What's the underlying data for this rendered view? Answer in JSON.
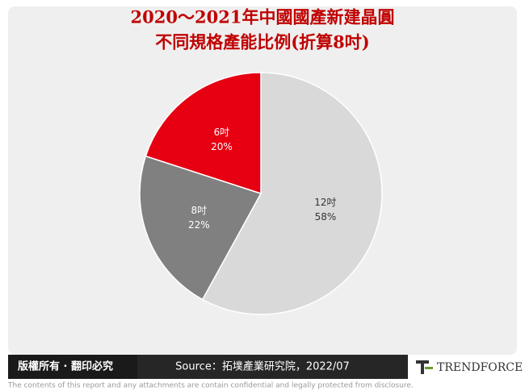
{
  "chart_data": {
    "type": "pie",
    "title": [
      "2020～2021年中國國產新建晶圓",
      "不同規格產能比例(折算8吋)"
    ],
    "categories": [
      "12吋",
      "8吋",
      "6吋"
    ],
    "values": [
      58,
      22,
      20
    ],
    "value_labels": [
      "58%",
      "22%",
      "20%"
    ],
    "colors": [
      "#d9d9d9",
      "#808080",
      "#e60012"
    ]
  },
  "footer": {
    "copyright": "版權所有 · 翻印必究",
    "source": "Source：拓墣產業研究院，2022/07",
    "logo": "TRENDFORCE",
    "disclaimer": "The contents of this report and any attachments are contain confidential and legally protected from disclosure."
  }
}
